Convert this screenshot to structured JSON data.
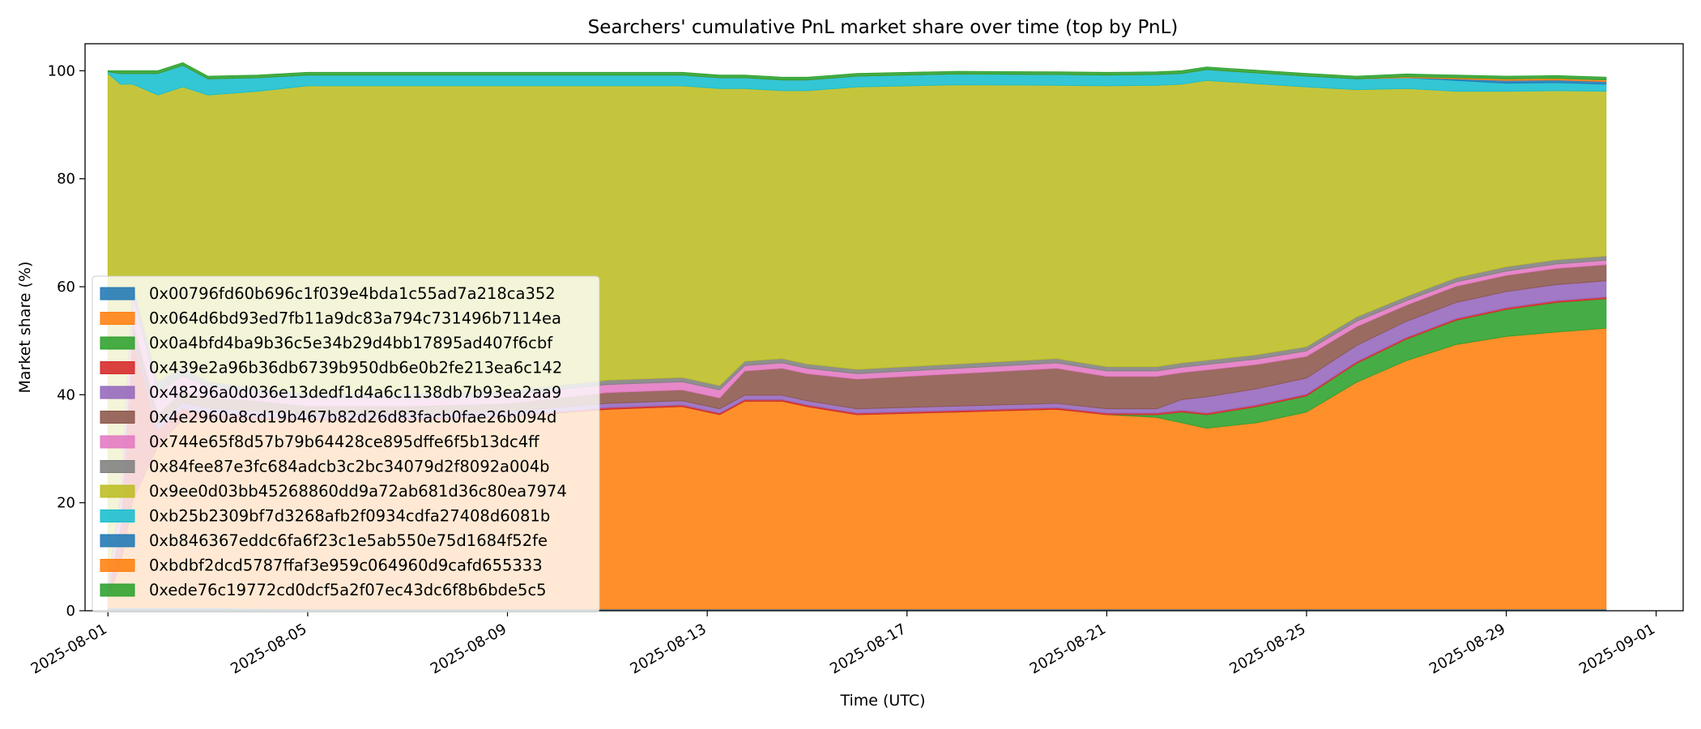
{
  "chart_data": {
    "type": "area",
    "title": "Searchers' cumulative PnL market share over time (top by PnL)",
    "xlabel": "Time (UTC)",
    "ylabel": "Market share (%)",
    "ylim": [
      0,
      105
    ],
    "xlim": [
      "2025-07-31T13:00",
      "2025-09-01T13:00"
    ],
    "x_ticks": [
      "2025-08-01",
      "2025-08-05",
      "2025-08-09",
      "2025-08-13",
      "2025-08-17",
      "2025-08-21",
      "2025-08-25",
      "2025-08-29",
      "2025-09-01"
    ],
    "y_ticks": [
      0,
      20,
      40,
      60,
      80,
      100
    ],
    "grid": false,
    "stacked": true,
    "legend_position": "lower-left",
    "x": [
      "2025-08-01T00:00",
      "2025-08-01T06:00",
      "2025-08-01T12:00",
      "2025-08-02T00:00",
      "2025-08-02T12:00",
      "2025-08-03T00:00",
      "2025-08-04T00:00",
      "2025-08-05T00:00",
      "2025-08-07T00:00",
      "2025-08-09T00:00",
      "2025-08-11T00:00",
      "2025-08-12T12:00",
      "2025-08-13T06:00",
      "2025-08-13T18:00",
      "2025-08-14T12:00",
      "2025-08-15T00:00",
      "2025-08-16T00:00",
      "2025-08-18T00:00",
      "2025-08-20T00:00",
      "2025-08-21T00:00",
      "2025-08-22T00:00",
      "2025-08-22T12:00",
      "2025-08-23T00:00",
      "2025-08-24T00:00",
      "2025-08-25T00:00",
      "2025-08-26T00:00",
      "2025-08-27T00:00",
      "2025-08-28T00:00",
      "2025-08-29T00:00",
      "2025-08-30T00:00",
      "2025-08-31T00:00"
    ],
    "series": [
      {
        "name": "0x00796fd60b696c1f039e4bda1c55ad7a218ca352",
        "color": "#1f77b4",
        "values": [
          0.5,
          0.5,
          0.5,
          0.5,
          0.5,
          0.5,
          0.4,
          0.3,
          0.3,
          0.3,
          0.3,
          0.3,
          0.3,
          0.3,
          0.3,
          0.3,
          0.3,
          0.3,
          0.3,
          0.3,
          0.3,
          0.3,
          0.3,
          0.3,
          0.3,
          0.3,
          0.3,
          0.3,
          0.3,
          0.3,
          0.3
        ]
      },
      {
        "name": "0x064d6bd93ed7fb11a9dc83a794c731496b7114ea",
        "color": "#ff7f0e",
        "values": [
          2,
          8,
          20,
          30,
          35,
          35,
          35,
          35,
          35,
          35.5,
          37,
          37.5,
          36,
          38.5,
          38.5,
          37.5,
          36,
          36.5,
          37,
          36,
          35.5,
          34.5,
          33.5,
          34.5,
          36.5,
          42,
          46,
          49,
          50.5,
          51.3,
          52
        ]
      },
      {
        "name": "0x0a4bfd4ba9b36c5e34b29d4bb17895ad407f6cbf",
        "color": "#2ca02c",
        "values": [
          0,
          0,
          0,
          0,
          0,
          0,
          0,
          0,
          0,
          0,
          0,
          0,
          0,
          0,
          0,
          0,
          0,
          0,
          0,
          0,
          0.5,
          2,
          2.5,
          3,
          3,
          3.5,
          4,
          4.5,
          5,
          5.5,
          5.5
        ]
      },
      {
        "name": "0x439e2a96b36db6739b950db6e0b2fe213ea6c142",
        "color": "#d62728",
        "values": [
          0.5,
          5,
          30,
          3,
          2,
          1,
          0.5,
          0.3,
          0.3,
          0.3,
          0.3,
          0.3,
          0.3,
          0.3,
          0.3,
          0.3,
          0.3,
          0.3,
          0.3,
          0.3,
          0.3,
          0.3,
          0.3,
          0.3,
          0.3,
          0.3,
          0.3,
          0.3,
          0.3,
          0.3,
          0.3
        ]
      },
      {
        "name": "0x48296a0d036e13dedf1d4a6c1138db7b93ea2aa9",
        "color": "#9467bd",
        "values": [
          0.5,
          1,
          1,
          1,
          1,
          1,
          1,
          0.8,
          0.8,
          0.8,
          0.8,
          0.8,
          0.8,
          0.8,
          0.8,
          0.8,
          0.8,
          0.8,
          0.8,
          0.8,
          0.8,
          2,
          3,
          3,
          3,
          3,
          3,
          3,
          3,
          3,
          3
        ]
      },
      {
        "name": "0x4e2960a8cd19b467b82d26d83facb0fae26b094d",
        "color": "#8c564b",
        "values": [
          0.5,
          1,
          2,
          2,
          2,
          2,
          2,
          1.5,
          1.5,
          1.5,
          2,
          2,
          2,
          4.5,
          5,
          5,
          5.5,
          6,
          6.5,
          6,
          6,
          5,
          5,
          4.5,
          4,
          3.5,
          3,
          3,
          3,
          3,
          3
        ]
      },
      {
        "name": "0x744e65f8d57b79b64428ce895dffe6f5b13dc4ff",
        "color": "#e377c2",
        "values": [
          1,
          5,
          5,
          4,
          3,
          2,
          1.5,
          1.5,
          1.5,
          1.5,
          1.5,
          1.5,
          1.5,
          1,
          1,
          1,
          1,
          1,
          1,
          1,
          1,
          1,
          1,
          1,
          1,
          1,
          0.8,
          0.8,
          0.8,
          0.8,
          0.8
        ]
      },
      {
        "name": "0x84fee87e3fc684adcb3c2bc34079d2f8092a004b",
        "color": "#7f7f7f",
        "values": [
          0.5,
          1,
          2,
          2,
          1.5,
          1,
          0.8,
          0.8,
          0.8,
          0.8,
          0.8,
          0.8,
          0.8,
          0.8,
          0.8,
          0.8,
          0.8,
          0.8,
          0.8,
          0.8,
          0.8,
          0.8,
          0.8,
          0.8,
          0.8,
          0.8,
          0.8,
          0.8,
          0.8,
          0.8,
          0.8
        ]
      },
      {
        "name": "0x9ee0d03bb45268860dd9a72ab681d36c80ea7974",
        "color": "#bcbd22",
        "values": [
          94,
          76,
          37,
          53,
          52,
          53,
          55,
          57,
          57,
          56.5,
          54.5,
          54,
          55,
          50.5,
          49.6,
          50.6,
          52.3,
          51.7,
          50.6,
          52,
          52.1,
          51.6,
          51.8,
          50.2,
          48.1,
          42.1,
          38.5,
          34.5,
          32.5,
          31.3,
          30.5
        ]
      },
      {
        "name": "0xb25b2309bf7d3268afb2f0934cdfa27408d6081b",
        "color": "#17becf",
        "values": [
          0.3,
          2,
          2,
          4,
          4,
          3,
          2.5,
          2,
          2,
          2,
          2,
          2,
          2,
          2,
          2,
          2,
          2,
          2,
          2,
          2,
          2,
          2,
          2,
          2,
          2,
          2,
          2,
          2,
          1.5,
          1.5,
          1.3
        ]
      },
      {
        "name": "0xb846367eddc6fa6f23c1e5ab550e75d1684f52fe",
        "color": "#1f77b4",
        "values": [
          0,
          0,
          0,
          0,
          0,
          0,
          0,
          0,
          0,
          0,
          0,
          0,
          0,
          0,
          0,
          0,
          0,
          0,
          0,
          0,
          0,
          0,
          0,
          0,
          0,
          0,
          0,
          0.3,
          0.5,
          0.5,
          0.5
        ]
      },
      {
        "name": "0xbdbf2dcd5787ffaf3e959c064960d9cafd655333",
        "color": "#ff7f0e",
        "values": [
          0,
          0,
          0,
          0,
          0,
          0,
          0,
          0,
          0,
          0,
          0,
          0,
          0,
          0,
          0,
          0,
          0,
          0,
          0,
          0,
          0,
          0,
          0,
          0,
          0,
          0,
          0.2,
          0.2,
          0.3,
          0.3,
          0.3
        ]
      },
      {
        "name": "0xede76c19772cd0dcf5a2f07ec43dc6f8b6bde5c5",
        "color": "#2ca02c",
        "values": [
          0.2,
          0.5,
          0.5,
          0.5,
          0.5,
          0.5,
          0.5,
          0.5,
          0.5,
          0.5,
          0.5,
          0.5,
          0.5,
          0.5,
          0.5,
          0.5,
          0.5,
          0.5,
          0.5,
          0.5,
          0.5,
          0.5,
          0.5,
          0.5,
          0.5,
          0.5,
          0.5,
          0.5,
          0.5,
          0.5,
          0.5
        ]
      }
    ]
  }
}
